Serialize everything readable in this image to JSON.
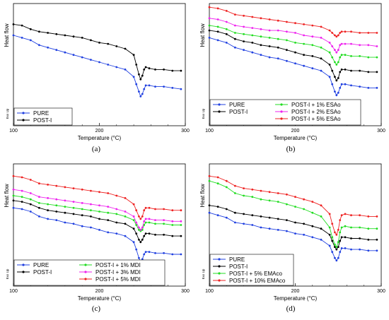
{
  "chart_data": [
    {
      "id": "a",
      "type": "line",
      "panel_label": "(a)",
      "xlabel": "Temperature (°C)",
      "ylabel": "Heat flow",
      "endo_label": "Exo Up",
      "xlim": [
        100,
        300
      ],
      "ylim": [
        0,
        100
      ],
      "xticks": [
        100,
        200,
        300
      ],
      "legend_layout": "single",
      "series": [
        {
          "name": "PURE",
          "color": "#2040e0",
          "marker": "circle",
          "x": [
            100,
            110,
            120,
            130,
            140,
            150,
            160,
            170,
            180,
            190,
            200,
            210,
            220,
            230,
            240,
            243,
            246,
            248,
            250,
            252,
            254,
            258,
            265,
            275,
            285,
            295
          ],
          "y": [
            74,
            72,
            70,
            66,
            64,
            62,
            60,
            58,
            56,
            54,
            52,
            50,
            48,
            46,
            40,
            34,
            28,
            24,
            26,
            30,
            33,
            33,
            32,
            32,
            31,
            30
          ]
        },
        {
          "name": "POST-I",
          "color": "#000000",
          "marker": "circle",
          "x": [
            100,
            110,
            120,
            130,
            140,
            150,
            160,
            170,
            180,
            190,
            200,
            210,
            220,
            230,
            240,
            243,
            246,
            248,
            250,
            252,
            254,
            258,
            265,
            275,
            285,
            295
          ],
          "y": [
            83,
            82,
            79,
            77,
            76,
            75,
            74,
            73,
            72,
            70,
            68,
            67,
            65,
            63,
            58,
            50,
            42,
            38,
            41,
            46,
            48,
            47,
            46,
            46,
            45,
            45
          ]
        }
      ]
    },
    {
      "id": "b",
      "type": "line",
      "panel_label": "(b)",
      "xlabel": "Temperature (°C)",
      "ylabel": "Heat flow",
      "endo_label": "Exo Up",
      "xlim": [
        100,
        300
      ],
      "ylim": [
        0,
        100
      ],
      "xticks": [
        100,
        200,
        300
      ],
      "legend_layout": "two-column",
      "series": [
        {
          "name": "PURE",
          "color": "#2040e0",
          "marker": "circle",
          "x": [
            100,
            110,
            120,
            130,
            140,
            150,
            160,
            170,
            180,
            190,
            200,
            210,
            220,
            230,
            240,
            243,
            246,
            248,
            250,
            252,
            254,
            258,
            265,
            275,
            285,
            295
          ],
          "y": [
            72,
            70,
            68,
            64,
            62,
            60,
            58,
            56,
            55,
            53,
            51,
            49,
            47,
            45,
            40,
            34,
            28,
            25,
            27,
            31,
            34,
            34,
            33,
            32,
            31,
            31
          ]
        },
        {
          "name": "POST-I",
          "color": "#000000",
          "marker": "circle",
          "x": [
            100,
            110,
            120,
            130,
            140,
            150,
            160,
            170,
            180,
            190,
            200,
            210,
            220,
            230,
            240,
            243,
            246,
            248,
            250,
            252,
            254,
            258,
            265,
            275,
            285,
            295
          ],
          "y": [
            78,
            77,
            75,
            71,
            69,
            68,
            66,
            65,
            64,
            62,
            60,
            58,
            57,
            55,
            50,
            45,
            40,
            37,
            39,
            44,
            46,
            46,
            45,
            45,
            44,
            44
          ]
        },
        {
          "name": "POST-I + 1% ESAo",
          "color": "#22dd22",
          "marker": "circle",
          "x": [
            100,
            110,
            120,
            130,
            140,
            150,
            160,
            170,
            180,
            190,
            200,
            210,
            220,
            230,
            240,
            243,
            246,
            248,
            250,
            252,
            254,
            258,
            265,
            275,
            285,
            295
          ],
          "y": [
            82,
            81,
            79,
            76,
            75,
            74,
            73,
            72,
            71,
            70,
            68,
            67,
            66,
            64,
            60,
            56,
            52,
            50,
            52,
            56,
            58,
            58,
            57,
            57,
            56,
            56
          ]
        },
        {
          "name": "POST-I + 2% ESAo",
          "color": "#ee22ee",
          "marker": "circle",
          "x": [
            100,
            110,
            120,
            130,
            140,
            150,
            160,
            170,
            180,
            190,
            200,
            210,
            220,
            230,
            240,
            243,
            246,
            248,
            250,
            252,
            254,
            258,
            265,
            275,
            285,
            295
          ],
          "y": [
            88,
            87,
            85,
            82,
            81,
            80,
            79,
            78,
            78,
            77,
            76,
            74,
            73,
            72,
            68,
            65,
            62,
            60,
            62,
            66,
            67,
            67,
            67,
            66,
            66,
            65
          ]
        },
        {
          "name": "POST-I + 5% ESAo",
          "color": "#ee2222",
          "marker": "circle",
          "x": [
            100,
            110,
            120,
            130,
            140,
            150,
            160,
            170,
            180,
            190,
            200,
            210,
            220,
            230,
            240,
            243,
            246,
            248,
            250,
            252,
            254,
            258,
            265,
            275,
            285,
            295
          ],
          "y": [
            97,
            96,
            94,
            91,
            90,
            89,
            88,
            87,
            86,
            85,
            84,
            83,
            82,
            81,
            78,
            76,
            74,
            73,
            74,
            76,
            77,
            77,
            77,
            76,
            76,
            76
          ]
        }
      ]
    },
    {
      "id": "c",
      "type": "line",
      "panel_label": "(c)",
      "xlabel": "Temperature (°C)",
      "ylabel": "Heat flow",
      "endo_label": "Exo Up",
      "xlim": [
        100,
        300
      ],
      "ylim": [
        0,
        100
      ],
      "xticks": [
        100,
        200,
        300
      ],
      "legend_layout": "two-column",
      "series": [
        {
          "name": "PURE",
          "color": "#2040e0",
          "marker": "circle",
          "x": [
            100,
            110,
            120,
            130,
            140,
            150,
            160,
            170,
            180,
            190,
            200,
            210,
            220,
            230,
            240,
            243,
            246,
            248,
            250,
            252,
            254,
            258,
            265,
            275,
            285,
            295
          ],
          "y": [
            64,
            63,
            61,
            57,
            55,
            54,
            52,
            51,
            49,
            48,
            46,
            44,
            43,
            41,
            36,
            30,
            23,
            20,
            22,
            26,
            28,
            28,
            27,
            27,
            26,
            26
          ]
        },
        {
          "name": "POST-I",
          "color": "#000000",
          "marker": "circle",
          "x": [
            100,
            110,
            120,
            130,
            140,
            150,
            160,
            170,
            180,
            190,
            200,
            210,
            220,
            230,
            240,
            243,
            246,
            248,
            250,
            252,
            254,
            258,
            265,
            275,
            285,
            295
          ],
          "y": [
            70,
            69,
            67,
            64,
            62,
            61,
            60,
            59,
            58,
            57,
            55,
            54,
            52,
            51,
            47,
            43,
            38,
            36,
            38,
            41,
            43,
            43,
            42,
            42,
            41,
            41
          ]
        },
        {
          "name": "POST-I + 1% MDI",
          "color": "#22dd22",
          "marker": "circle",
          "x": [
            100,
            110,
            120,
            130,
            140,
            150,
            160,
            170,
            180,
            190,
            200,
            210,
            220,
            230,
            240,
            243,
            246,
            248,
            250,
            252,
            254,
            258,
            265,
            275,
            285,
            295
          ],
          "y": [
            74,
            73,
            71,
            68,
            67,
            66,
            65,
            64,
            63,
            62,
            61,
            60,
            59,
            57,
            54,
            50,
            46,
            45,
            46,
            50,
            52,
            52,
            51,
            51,
            50,
            50
          ]
        },
        {
          "name": "POST-I + 3% MDI",
          "color": "#ee22ee",
          "marker": "circle",
          "x": [
            100,
            110,
            120,
            130,
            140,
            150,
            160,
            170,
            180,
            190,
            200,
            210,
            220,
            230,
            240,
            243,
            246,
            248,
            250,
            252,
            254,
            258,
            265,
            275,
            285,
            295
          ],
          "y": [
            79,
            78,
            76,
            73,
            72,
            71,
            70,
            69,
            68,
            67,
            66,
            65,
            63,
            61,
            57,
            52,
            48,
            46,
            48,
            53,
            55,
            55,
            54,
            54,
            53,
            53
          ]
        },
        {
          "name": "POST-I + 5% MDI",
          "color": "#ee2222",
          "marker": "circle",
          "x": [
            100,
            110,
            120,
            130,
            140,
            150,
            160,
            170,
            180,
            190,
            200,
            210,
            220,
            230,
            240,
            243,
            246,
            248,
            250,
            252,
            254,
            258,
            265,
            275,
            285,
            295
          ],
          "y": [
            90,
            89,
            87,
            84,
            83,
            82,
            81,
            80,
            79,
            78,
            77,
            76,
            74,
            72,
            67,
            62,
            57,
            55,
            57,
            62,
            64,
            64,
            63,
            63,
            62,
            62
          ]
        }
      ]
    },
    {
      "id": "d",
      "type": "line",
      "panel_label": "(d)",
      "xlabel": "Temperature (°C)",
      "ylabel": "Heat flow",
      "endo_label": "Exo Up",
      "xlim": [
        100,
        300
      ],
      "ylim": [
        0,
        100
      ],
      "xticks": [
        100,
        200,
        300
      ],
      "legend_layout": "single",
      "series": [
        {
          "name": "PURE",
          "color": "#2040e0",
          "marker": "circle",
          "x": [
            100,
            110,
            120,
            130,
            140,
            150,
            160,
            170,
            180,
            190,
            200,
            210,
            220,
            230,
            240,
            243,
            246,
            248,
            250,
            252,
            254,
            258,
            265,
            275,
            285,
            295
          ],
          "y": [
            60,
            58,
            56,
            52,
            51,
            50,
            48,
            47,
            46,
            45,
            43,
            42,
            40,
            38,
            33,
            28,
            23,
            21,
            23,
            28,
            31,
            31,
            30,
            30,
            29,
            29
          ]
        },
        {
          "name": "POST-I",
          "color": "#000000",
          "marker": "circle",
          "x": [
            100,
            110,
            120,
            130,
            140,
            150,
            160,
            170,
            180,
            190,
            200,
            210,
            220,
            230,
            240,
            243,
            246,
            248,
            250,
            252,
            254,
            258,
            265,
            275,
            285,
            295
          ],
          "y": [
            66,
            65,
            63,
            60,
            59,
            58,
            57,
            56,
            55,
            54,
            52,
            51,
            49,
            47,
            42,
            37,
            32,
            30,
            32,
            37,
            40,
            40,
            39,
            39,
            38,
            38
          ]
        },
        {
          "name": "POST-I + 5% EMAco",
          "color": "#22dd22",
          "marker": "circle",
          "x": [
            100,
            110,
            120,
            130,
            140,
            150,
            160,
            170,
            180,
            190,
            200,
            210,
            220,
            230,
            240,
            243,
            246,
            248,
            250,
            252,
            254,
            258,
            265,
            275,
            285,
            295
          ],
          "y": [
            86,
            84,
            81,
            76,
            74,
            73,
            71,
            70,
            69,
            67,
            65,
            63,
            60,
            57,
            48,
            40,
            34,
            32,
            36,
            44,
            48,
            49,
            48,
            48,
            47,
            47
          ]
        },
        {
          "name": "POST-I + 10% EMAco",
          "color": "#ee2222",
          "marker": "circle",
          "x": [
            100,
            110,
            120,
            130,
            140,
            150,
            160,
            170,
            180,
            190,
            200,
            210,
            220,
            230,
            240,
            243,
            246,
            248,
            250,
            252,
            254,
            258,
            265,
            275,
            285,
            295
          ],
          "y": [
            90,
            89,
            86,
            82,
            80,
            79,
            78,
            77,
            76,
            75,
            73,
            71,
            69,
            66,
            59,
            51,
            44,
            42,
            46,
            54,
            58,
            59,
            58,
            58,
            57,
            57
          ]
        }
      ]
    }
  ]
}
